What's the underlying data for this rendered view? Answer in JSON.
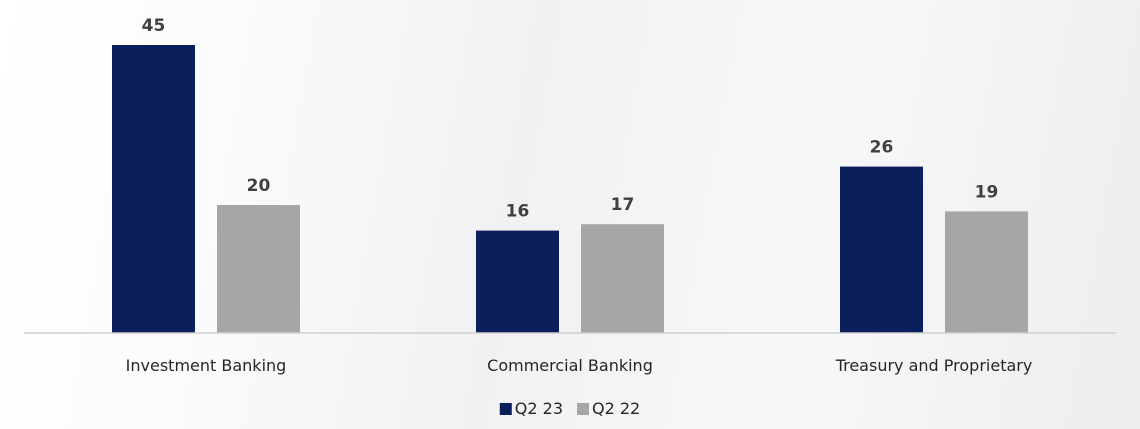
{
  "chart_data": {
    "type": "bar",
    "title": "",
    "xlabel": "",
    "ylabel": "",
    "categories": [
      "Investment Banking",
      "Commercial Banking",
      "Treasury and Proprietary"
    ],
    "series": [
      {
        "name": "Q2 23",
        "values": [
          45,
          16,
          26
        ],
        "color": "#0a1f5c"
      },
      {
        "name": "Q2 22",
        "values": [
          20,
          17,
          19
        ],
        "color": "#a6a6a6"
      }
    ],
    "ylim": [
      0,
      45
    ],
    "grid": false,
    "data_labels": true,
    "legend": {
      "position": "bottom-center"
    }
  },
  "colors": {
    "axis": "#d0d0d0",
    "label_text": "#404040",
    "category_text": "#262626"
  }
}
